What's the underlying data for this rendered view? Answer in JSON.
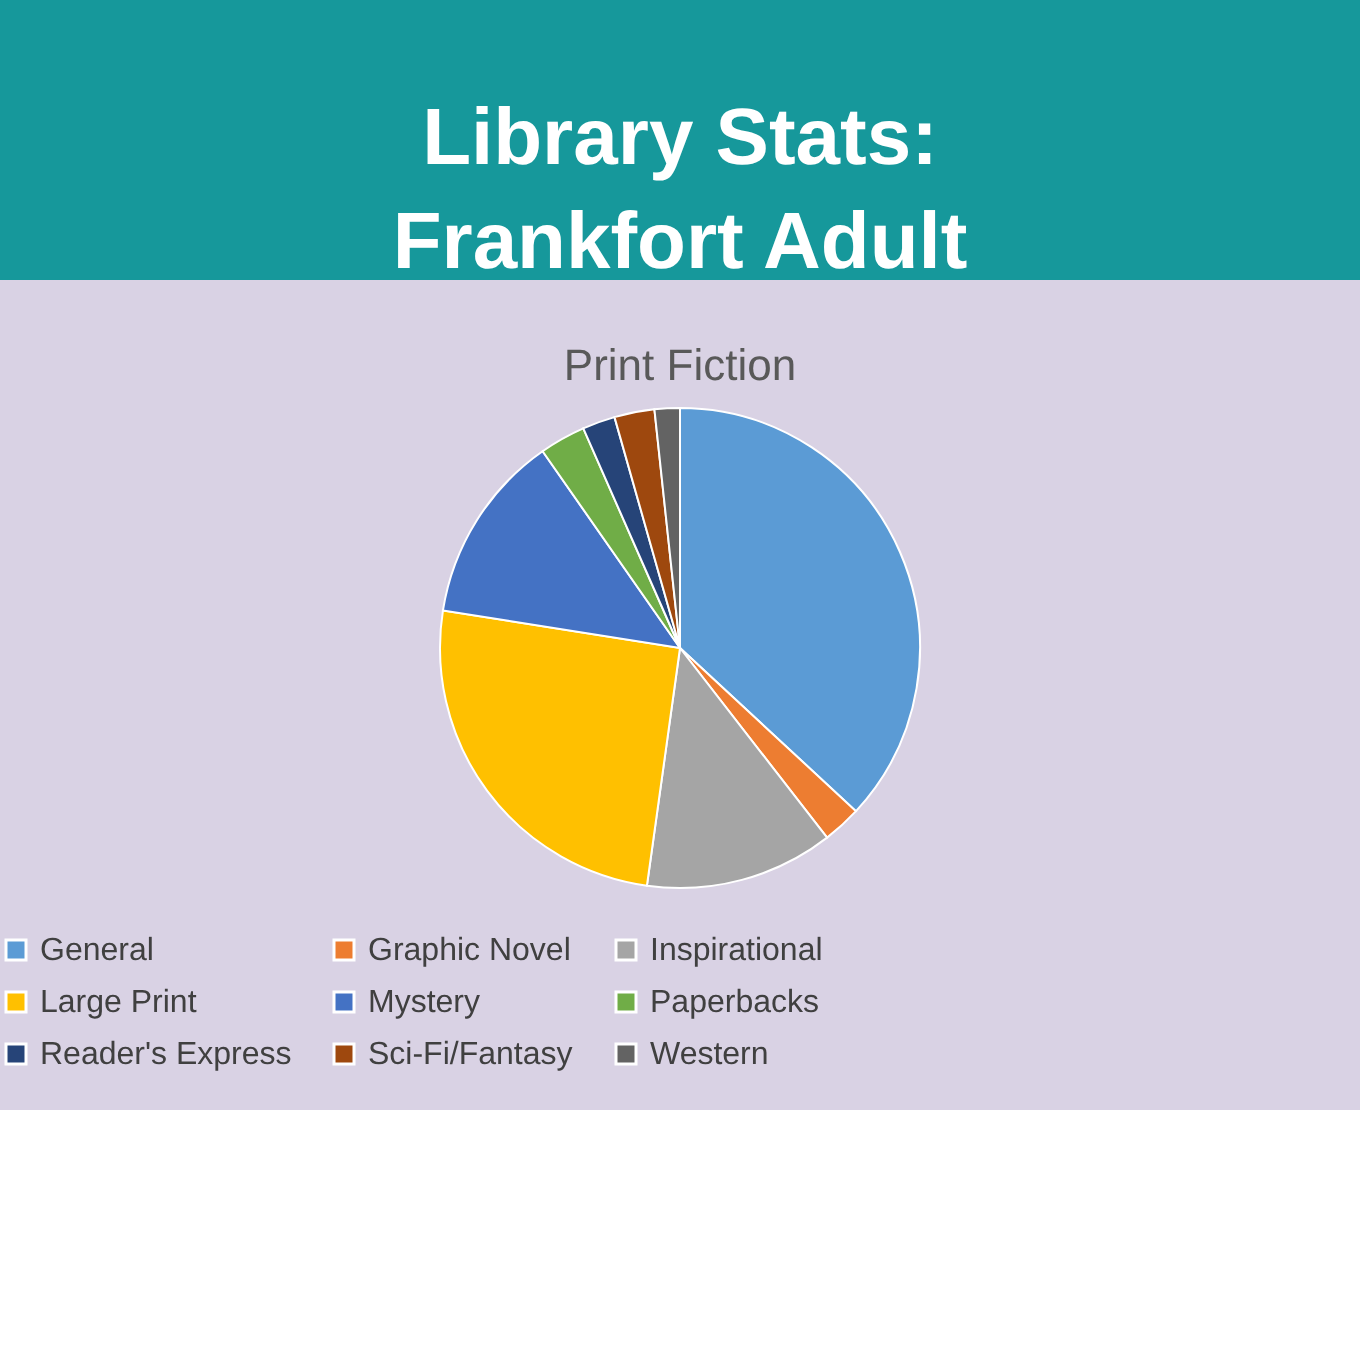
{
  "chart_data": {
    "type": "pie",
    "title": "Library Stats: Frankfort Adult",
    "subtitle": "Print Fiction",
    "categories": [
      "General",
      "Graphic Novel",
      "Inspirational",
      "Large Print",
      "Mystery",
      "Paperbacks",
      "Reader's Express",
      "Sci-Fi/Fantasy",
      "Western"
    ],
    "values": [
      36.9,
      2.6,
      12.7,
      25.3,
      12.8,
      3.1,
      2.2,
      2.7,
      1.7
    ],
    "colors": [
      "#5b9bd5",
      "#ed7d31",
      "#a5a5a5",
      "#ffc000",
      "#4472c4",
      "#70ad47",
      "#264478",
      "#9e480e",
      "#636363"
    ],
    "legend": "bottom"
  }
}
